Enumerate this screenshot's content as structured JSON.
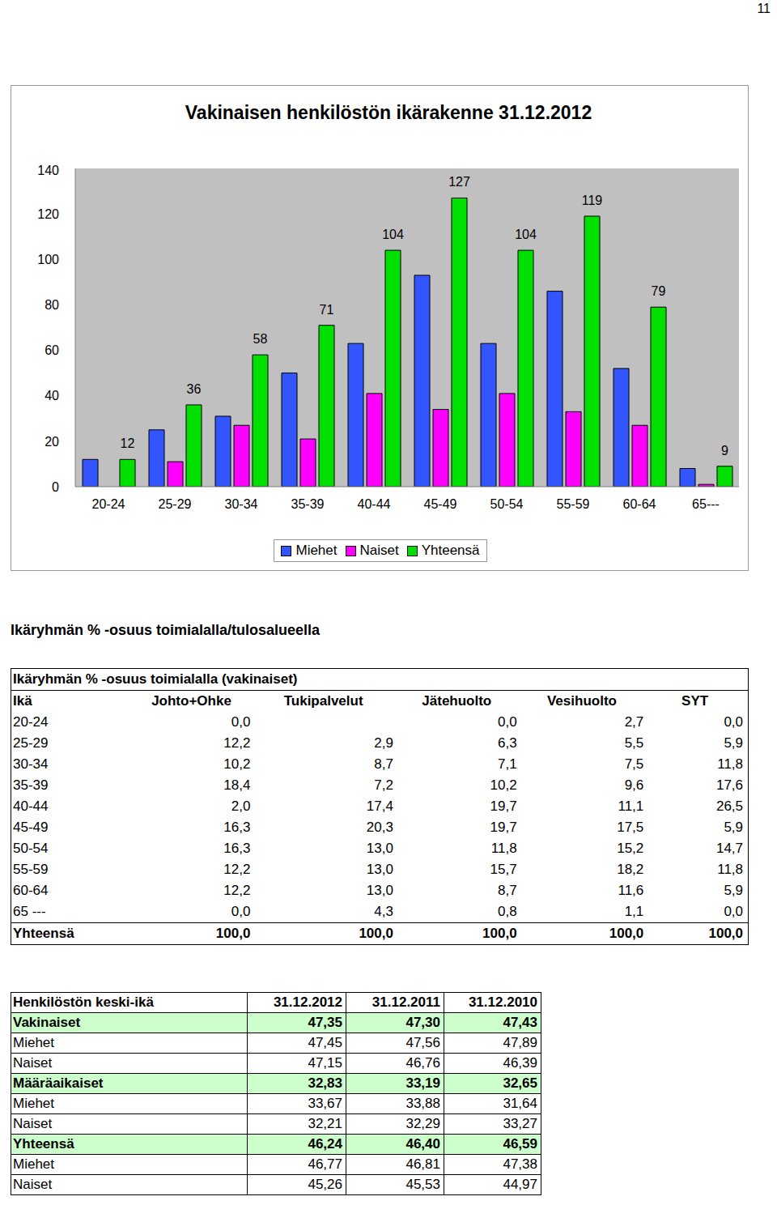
{
  "page_number": "11",
  "chart_data": {
    "type": "bar",
    "title": "Vakinaisen henkilöstön ikärakenne 31.12.2012",
    "categories": [
      "20-24",
      "25-29",
      "30-34",
      "35-39",
      "40-44",
      "45-49",
      "50-54",
      "55-59",
      "60-64",
      "65---"
    ],
    "series": [
      {
        "name": "Miehet",
        "color": "#3355FF",
        "values": [
          12,
          25,
          31,
          50,
          63,
          93,
          63,
          86,
          52,
          8
        ]
      },
      {
        "name": "Naiset",
        "color": "#FF00FF",
        "values": [
          0,
          11,
          27,
          21,
          41,
          34,
          41,
          33,
          27,
          1
        ]
      },
      {
        "name": "Yhteensä",
        "color": "#00E000",
        "values": [
          12,
          36,
          58,
          71,
          104,
          127,
          104,
          119,
          79,
          9
        ],
        "data_labels": true
      }
    ],
    "ylim": [
      0,
      140
    ],
    "yticks": [
      0,
      20,
      40,
      60,
      80,
      100,
      120,
      140
    ],
    "grid": false,
    "legend": "bottom"
  },
  "section_heading": "Ikäryhmän % -osuus toimialalla/tulosalueella",
  "age_share_table": {
    "title": "Ikäryhmän % -osuus toimialalla (vakinaiset)",
    "header": [
      "Ikä",
      "Johto+Ohke",
      "Tukipalvelut",
      "Jätehuolto",
      "Vesihuolto",
      "SYT"
    ],
    "rows": [
      [
        "20-24",
        "0,0",
        null,
        "0,0",
        "2,7",
        "0,0"
      ],
      [
        "25-29",
        "12,2",
        "2,9",
        "6,3",
        "5,5",
        "5,9"
      ],
      [
        "30-34",
        "10,2",
        "8,7",
        "7,1",
        "7,5",
        "11,8"
      ],
      [
        "35-39",
        "18,4",
        "7,2",
        "10,2",
        "9,6",
        "17,6"
      ],
      [
        "40-44",
        "2,0",
        "17,4",
        "19,7",
        "11,1",
        "26,5"
      ],
      [
        "45-49",
        "16,3",
        "20,3",
        "19,7",
        "17,5",
        "5,9"
      ],
      [
        "50-54",
        "16,3",
        "13,0",
        "11,8",
        "15,2",
        "14,7"
      ],
      [
        "55-59",
        "12,2",
        "13,0",
        "15,7",
        "18,2",
        "11,8"
      ],
      [
        "60-64",
        "12,2",
        "13,0",
        "8,7",
        "11,6",
        "5,9"
      ],
      [
        "65 ---",
        "0,0",
        "4,3",
        "0,8",
        "1,1",
        "0,0"
      ]
    ],
    "total_row": [
      "Yhteensä",
      "100,0",
      "100,0",
      "100,0",
      "100,0",
      "100,0"
    ]
  },
  "mean_age_table": {
    "header": [
      "Henkilöstön keski-ikä",
      "31.12.2012",
      "31.12.2011",
      "31.12.2010"
    ],
    "groups": [
      {
        "label": "Vakinaiset",
        "values": [
          "47,35",
          "47,30",
          "47,43"
        ],
        "rows": [
          {
            "label": "Miehet",
            "values": [
              "47,45",
              "47,56",
              "47,89"
            ]
          },
          {
            "label": "Naiset",
            "values": [
              "47,15",
              "46,76",
              "46,39"
            ]
          }
        ]
      },
      {
        "label": "Määräaikaiset",
        "values": [
          "32,83",
          "33,19",
          "32,65"
        ],
        "rows": [
          {
            "label": "Miehet",
            "values": [
              "33,67",
              "33,88",
              "31,64"
            ]
          },
          {
            "label": "Naiset",
            "values": [
              "32,21",
              "32,29",
              "33,27"
            ]
          }
        ]
      },
      {
        "label": "Yhteensä",
        "values": [
          "46,24",
          "46,40",
          "46,59"
        ],
        "rows": [
          {
            "label": "Miehet",
            "values": [
              "46,77",
              "46,81",
              "47,38"
            ]
          },
          {
            "label": "Naiset",
            "values": [
              "45,26",
              "45,53",
              "44,97"
            ]
          }
        ]
      }
    ]
  }
}
